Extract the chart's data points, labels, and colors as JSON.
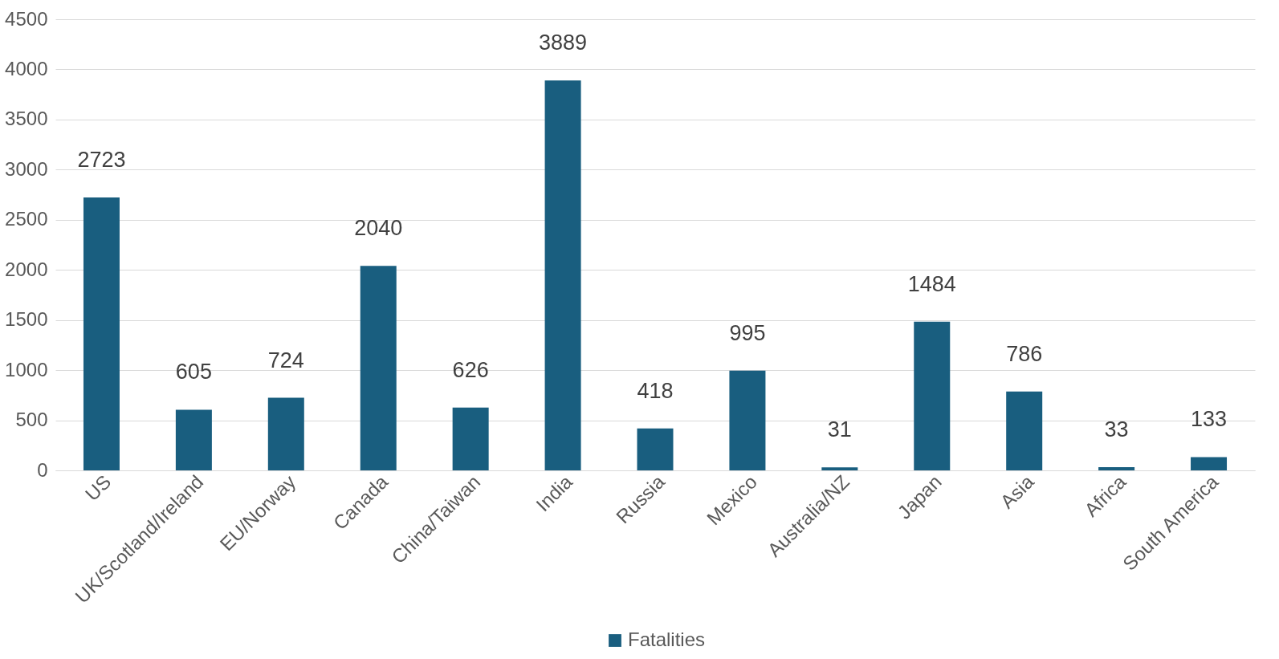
{
  "chart_data": {
    "type": "bar",
    "categories": [
      "US",
      "UK/Scotland/Ireland",
      "EU/Norway",
      "Canada",
      "China/Taiwan",
      "India",
      "Russia",
      "Mexico",
      "Australia/NZ",
      "Japan",
      "Asia",
      "Africa",
      "South America"
    ],
    "series": [
      {
        "name": "Fatalities",
        "color": "#195e7f",
        "values": [
          2723,
          605,
          724,
          2040,
          626,
          3889,
          418,
          995,
          31,
          1484,
          786,
          33,
          133
        ]
      }
    ],
    "ylim": [
      0,
      4500
    ],
    "yticks": [
      0,
      500,
      1000,
      1500,
      2000,
      2500,
      3000,
      3500,
      4000,
      4500
    ],
    "grid": "y",
    "legend": "bottom",
    "data_labels": true
  }
}
